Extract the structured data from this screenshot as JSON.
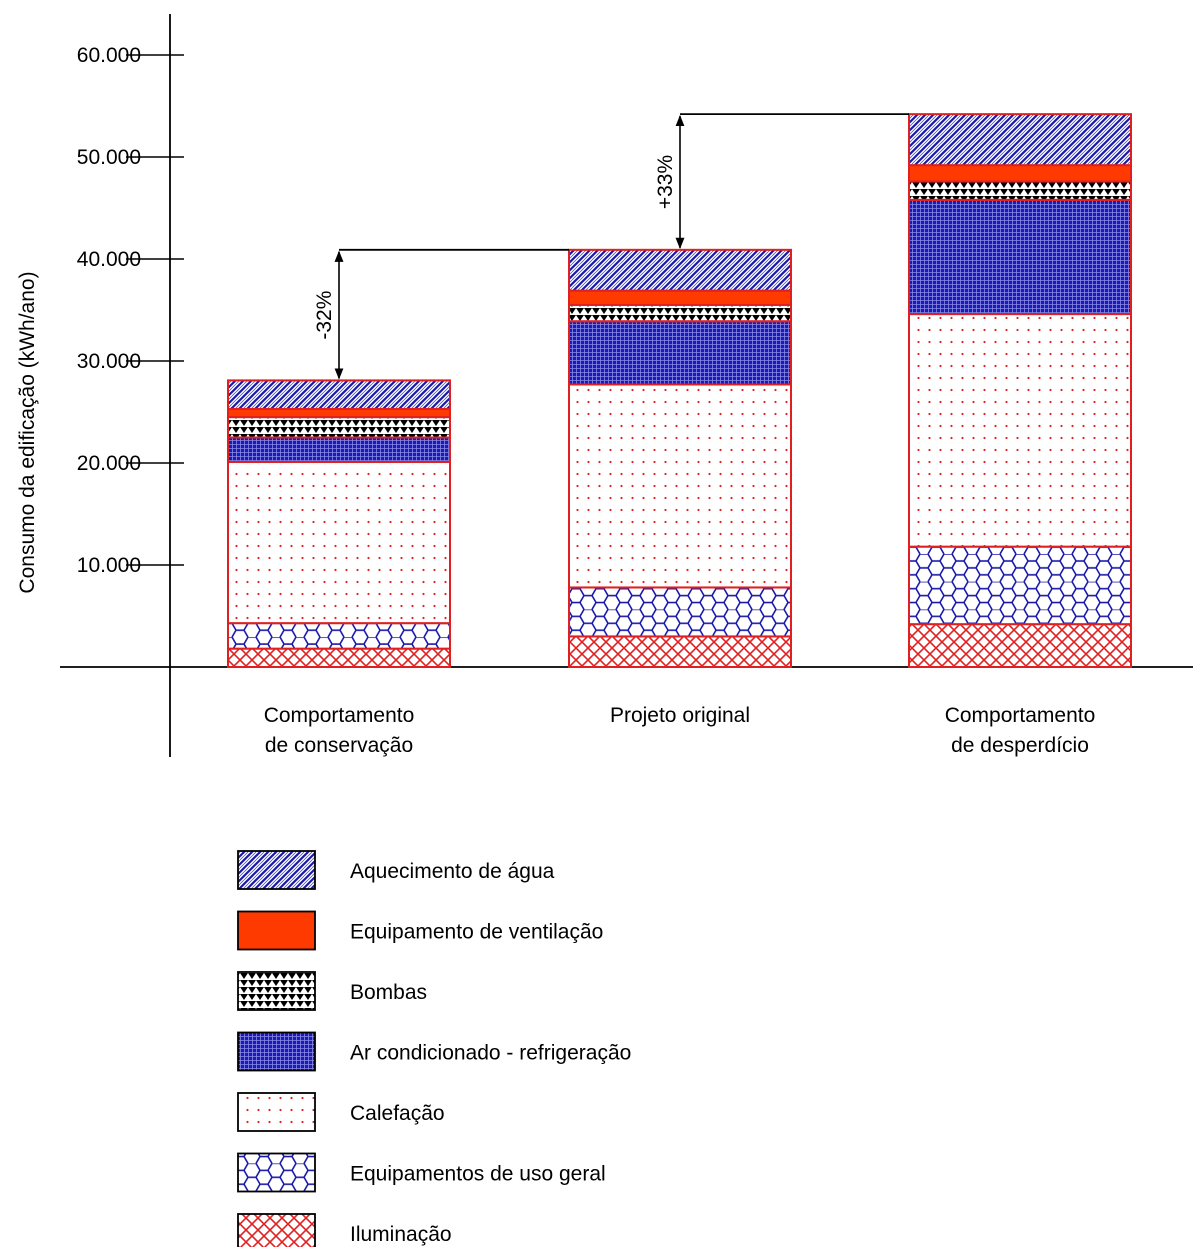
{
  "chart_data": {
    "type": "bar",
    "stacked": true,
    "ylabel": "Consumo da edificação (kWh/ano)",
    "y_ticks": [
      "10.000",
      "20.000",
      "30.000",
      "40.000",
      "50.000",
      "60.000"
    ],
    "y_tick_values": [
      10000,
      20000,
      30000,
      40000,
      50000,
      60000
    ],
    "ylim": [
      0,
      64000
    ],
    "grid": false,
    "legend_position": "bottom",
    "categories": [
      [
        "Comportamento",
        "de conservação"
      ],
      [
        "Projeto original"
      ],
      [
        "Comportamento",
        "de desperdício"
      ]
    ],
    "series": [
      {
        "name": "Iluminação",
        "pattern": "crosshatch",
        "color": "#e02020",
        "values": [
          1800,
          3000,
          4200
        ]
      },
      {
        "name": "Equipamentos de uso geral",
        "pattern": "hexagon",
        "color": "#1a1aa8",
        "values": [
          2500,
          4800,
          7600
        ]
      },
      {
        "name": "Calefação",
        "pattern": "dots",
        "color": "#e02020",
        "values": [
          15800,
          19900,
          22800
        ]
      },
      {
        "name": "Ar condicionado - refrigeração",
        "pattern": "grid",
        "color": "#1a1aa8",
        "values": [
          2400,
          6200,
          11200
        ]
      },
      {
        "name": "Bombas",
        "pattern": "triangles",
        "color": "#000000",
        "values": [
          2000,
          1600,
          1800
        ]
      },
      {
        "name": "Equipamento de ventilação",
        "pattern": "solid",
        "color": "#ff3a00",
        "values": [
          800,
          1400,
          1600
        ]
      },
      {
        "name": "Aquecimento de água",
        "pattern": "diagonal",
        "color": "#1a1aa8",
        "values": [
          2800,
          4000,
          5000
        ]
      }
    ],
    "totals": [
      28100,
      40900,
      54200
    ],
    "annotations": [
      {
        "text": "-32%",
        "from_category": 1,
        "to_category": 0
      },
      {
        "text": "+33%",
        "from_category": 1,
        "to_category": 2
      }
    ],
    "legend_order": [
      "Aquecimento de água",
      "Equipamento de ventilação",
      "Bombas",
      "Ar condicionado - refrigeração",
      "Calefação",
      "Equipamentos de uso geral",
      "Iluminação"
    ]
  }
}
